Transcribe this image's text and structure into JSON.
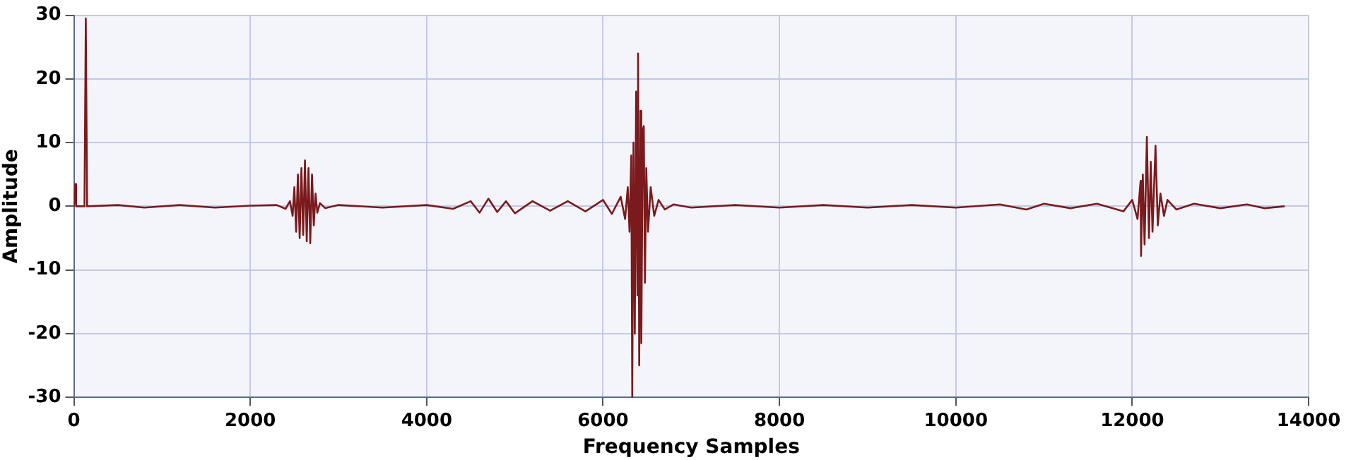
{
  "chart_data": {
    "type": "line",
    "xlabel": "Frequency Samples",
    "ylabel": "Amplitude",
    "xlim": [
      0,
      14000
    ],
    "xticks": [
      0,
      2000,
      4000,
      6000,
      8000,
      10000,
      12000,
      14000
    ],
    "ylim": [
      -30,
      30
    ],
    "yticks": [
      -30,
      -20,
      -10,
      0,
      10,
      20,
      30
    ],
    "grid": true,
    "legend": false,
    "marker": "none",
    "line_style": "solid",
    "series": [
      {
        "color": "#7a1a1c",
        "x": [
          0,
          16,
          25,
          120,
          135,
          150,
          500,
          800,
          1200,
          1600,
          2000,
          2300,
          2400,
          2450,
          2480,
          2500,
          2520,
          2540,
          2560,
          2580,
          2600,
          2620,
          2640,
          2660,
          2680,
          2700,
          2720,
          2740,
          2760,
          2790,
          2850,
          3000,
          3500,
          4000,
          4300,
          4500,
          4600,
          4700,
          4800,
          4900,
          5000,
          5200,
          5400,
          5600,
          5800,
          6000,
          6100,
          6200,
          6250,
          6280,
          6300,
          6320,
          6331,
          6345,
          6360,
          6375,
          6390,
          6397,
          6410,
          6425,
          6434,
          6450,
          6462,
          6475,
          6490,
          6510,
          6540,
          6580,
          6630,
          6700,
          6800,
          7000,
          7500,
          8000,
          8500,
          9000,
          9500,
          10000,
          10500,
          10800,
          11000,
          11300,
          11600,
          11900,
          12000,
          12060,
          12095,
          12100,
          12120,
          12140,
          12166,
          12190,
          12210,
          12230,
          12264,
          12290,
          12320,
          12360,
          12400,
          12500,
          12700,
          13000,
          13300,
          13500,
          13728
        ],
        "values": [
          0,
          3.5,
          0,
          0,
          29.5,
          0,
          0.2,
          -0.2,
          0.2,
          -0.2,
          0.1,
          0.2,
          -0.4,
          0.8,
          -1.5,
          3,
          -4,
          5,
          -5,
          6,
          -4.5,
          7.2,
          -5.5,
          6,
          -5.8,
          5,
          -3,
          2,
          -1,
          0.5,
          -0.3,
          0.2,
          -0.2,
          0.2,
          -0.4,
          0.8,
          -1,
          1.2,
          -0.9,
          0.8,
          -1.1,
          0.8,
          -0.7,
          0.8,
          -0.8,
          1,
          -1.2,
          1.5,
          -2,
          3,
          -4,
          8,
          -30,
          10,
          -20,
          18,
          -14,
          24,
          -25,
          15,
          -21.5,
          12,
          12.6,
          -12,
          6,
          -4,
          3,
          -1.5,
          1,
          -0.5,
          0.3,
          -0.2,
          0.2,
          -0.2,
          0.2,
          -0.2,
          0.2,
          -0.2,
          0.3,
          -0.5,
          0.4,
          -0.3,
          0.4,
          -0.8,
          1,
          -2,
          4,
          -7.8,
          5,
          -6,
          10.9,
          -5,
          7,
          -4,
          9.5,
          -3,
          2,
          -1.5,
          1,
          -0.5,
          0.4,
          -0.3,
          0.3,
          -0.3,
          0
        ]
      }
    ]
  }
}
